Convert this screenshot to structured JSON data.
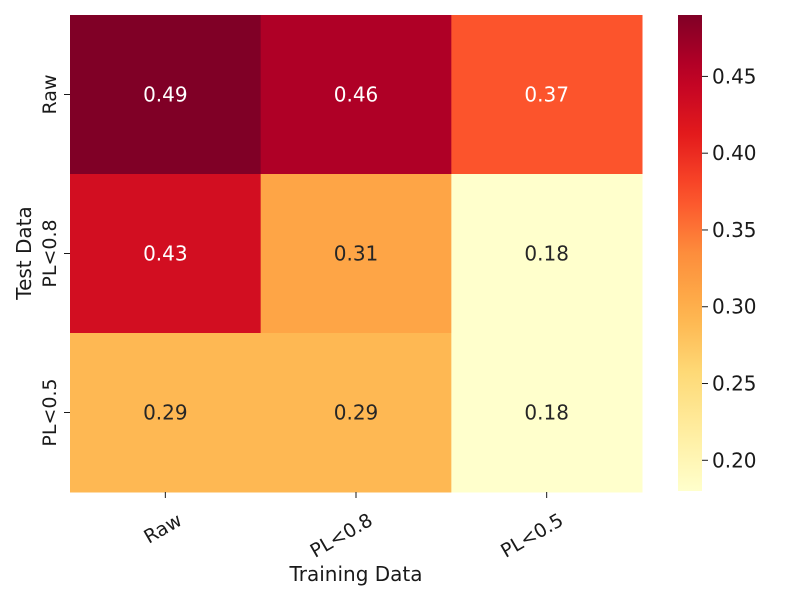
{
  "chart_data": {
    "type": "heatmap",
    "xlabel": "Training Data",
    "ylabel": "Test Data",
    "x_categories": [
      "Raw",
      "PL<0.8",
      "PL<0.5"
    ],
    "y_categories": [
      "Raw",
      "PL<0.8",
      "PL<0.5"
    ],
    "values": [
      [
        0.49,
        0.46,
        0.37
      ],
      [
        0.43,
        0.31,
        0.18
      ],
      [
        0.29,
        0.29,
        0.18
      ]
    ],
    "value_labels": [
      [
        "0.49",
        "0.46",
        "0.37"
      ],
      [
        "0.43",
        "0.31",
        "0.18"
      ],
      [
        "0.29",
        "0.29",
        "0.18"
      ]
    ],
    "colormap": "YlOrRd",
    "vmin": 0.18,
    "vmax": 0.49,
    "colorbar_ticks": [
      "0.20",
      "0.25",
      "0.30",
      "0.35",
      "0.40",
      "0.45"
    ],
    "light_text_color": "#ffffff",
    "dark_text_color": "#262626"
  }
}
